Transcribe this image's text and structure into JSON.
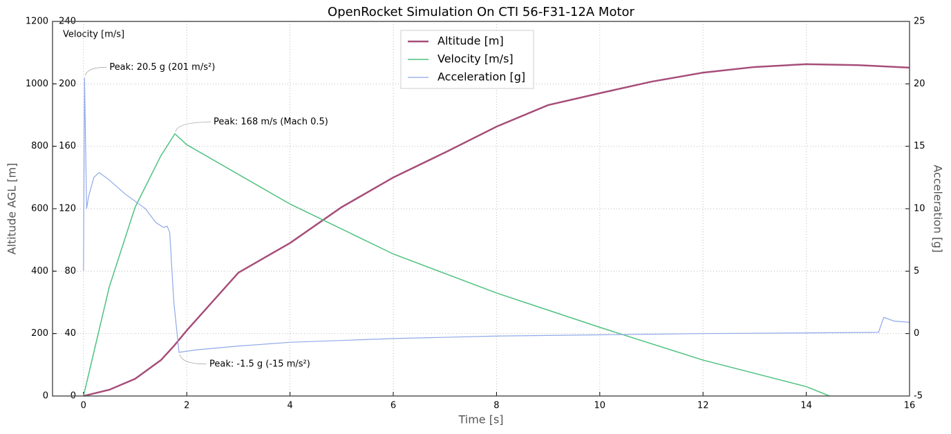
{
  "chart_data": {
    "type": "line",
    "title": "OpenRocket Simulation On CTI 56-F31-12A Motor",
    "xlabel": "Time [s]",
    "ylabel": "Altitude AGL [m]",
    "y2label": "Acceleration [g]",
    "y3label": "Velocity [m/s]",
    "xlim": [
      -0.6,
      16
    ],
    "xticks": [
      0,
      2,
      4,
      6,
      8,
      10,
      12,
      14,
      16
    ],
    "ylim": [
      0,
      1200
    ],
    "yticks": [
      0,
      200,
      400,
      600,
      800,
      1000,
      1200
    ],
    "y3lim": [
      0,
      240
    ],
    "y3ticks": [
      0,
      40,
      80,
      120,
      160,
      200,
      240
    ],
    "y2lim": [
      -5,
      25
    ],
    "y2ticks": [
      -5,
      0,
      5,
      10,
      15,
      20,
      25
    ],
    "grid": true,
    "legend": "upper center",
    "series": [
      {
        "name": "Altitude [m]",
        "color": "#a64d79",
        "width": 2.5,
        "x": [
          0,
          0.5,
          1,
          1.5,
          1.75,
          2,
          3,
          4,
          5,
          6,
          7,
          8,
          9,
          10,
          11,
          12,
          13,
          14,
          15,
          16
        ],
        "values": [
          0,
          20,
          55,
          115,
          160,
          210,
          395,
          490,
          605,
          700,
          780,
          863,
          932,
          970,
          1007,
          1036,
          1054,
          1063,
          1060,
          1052
        ]
      },
      {
        "name": "Velocity [m/s]",
        "color": "#4dc17e",
        "width": 1.5,
        "axis": "y3",
        "x": [
          0,
          0.5,
          1,
          1.5,
          1.77,
          2,
          4,
          6,
          8,
          10,
          12,
          14,
          14.45
        ],
        "values": [
          0,
          70,
          121,
          154,
          168,
          161,
          123,
          91,
          66,
          44,
          23,
          6,
          0
        ]
      },
      {
        "name": "Acceleration [g]",
        "color": "#8fa8e8",
        "width": 1.2,
        "axis": "y2",
        "x": [
          0,
          0.02,
          0.06,
          0.1,
          0.2,
          0.3,
          0.5,
          0.8,
          1.2,
          1.4,
          1.55,
          1.62,
          1.67,
          1.75,
          1.85,
          2.2,
          3,
          4,
          6,
          8,
          10,
          12,
          14,
          15.4,
          15.5,
          15.7,
          16
        ],
        "values": [
          5,
          20.5,
          10,
          11,
          12.5,
          12.9,
          12.3,
          11.2,
          10.0,
          8.9,
          8.5,
          8.6,
          8.1,
          2.5,
          -1.5,
          -1.3,
          -1.0,
          -0.7,
          -0.4,
          -0.2,
          -0.1,
          0,
          0.05,
          0.1,
          1.3,
          1.0,
          0.9
        ]
      }
    ],
    "annotations": [
      {
        "text": "Peak: 20.5 g (201 m/s²)",
        "x": 0.02,
        "y": 20.5,
        "axis": "y2"
      },
      {
        "text": "Peak: 168 m/s (Mach 0.5)",
        "x": 1.77,
        "y": 168,
        "axis": "y3"
      },
      {
        "text": "Peak: -1.5 g (-15 m/s²)",
        "x": 1.85,
        "y": -1.5,
        "axis": "y2"
      }
    ]
  }
}
